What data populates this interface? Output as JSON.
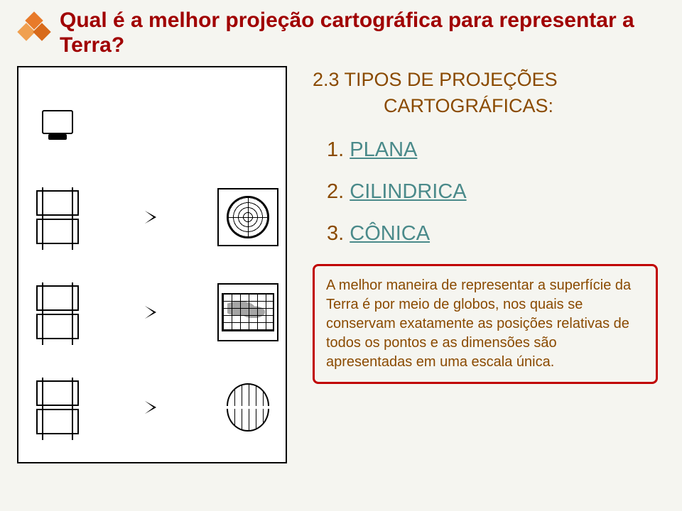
{
  "title": "Qual é a melhor projeção cartográfica para representar a Terra?",
  "subtitle": {
    "line1": "2.3 TIPOS DE PROJEÇÕES",
    "line2": "CARTOGRÁFICAS:"
  },
  "projections": [
    {
      "num": "1.",
      "name": "PLANA"
    },
    {
      "num": "2.",
      "name": "CILINDRICA"
    },
    {
      "num": "3.",
      "name": "CÔNICA"
    }
  ],
  "info_text": "A melhor maneira de representar a superfície da Terra é por meio de globos, nos quais se conservam exatamente as posições relativas de todos os pontos e as dimensões são apresentadas em uma escala única.",
  "colors": {
    "title": "#a00000",
    "body": "#8a4a00",
    "link": "#4a8a8a",
    "box_border": "#c00000",
    "background": "#f5f5f0"
  }
}
